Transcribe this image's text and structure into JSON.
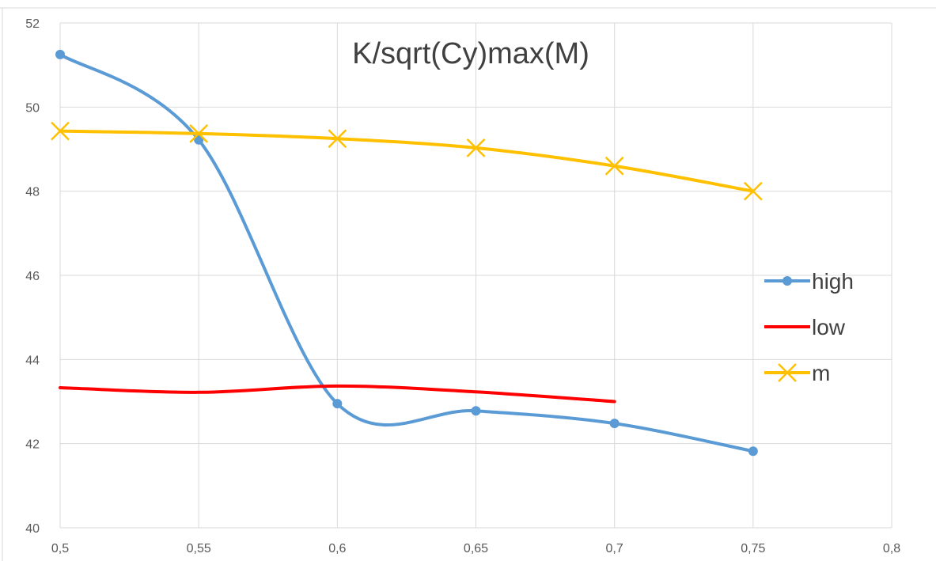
{
  "chart_data": {
    "type": "line",
    "title": "K/sqrt(Cy)max(M)",
    "xlabel": "",
    "ylabel": "",
    "xlim": [
      0.5,
      0.8
    ],
    "ylim": [
      40,
      52
    ],
    "x_ticks": [
      "0,5",
      "0,55",
      "0,6",
      "0,65",
      "0,7",
      "0,75",
      "0,8"
    ],
    "y_ticks": [
      "40",
      "42",
      "44",
      "46",
      "48",
      "50",
      "52"
    ],
    "grid": true,
    "smooth": true,
    "legend_position": "right",
    "series": [
      {
        "name": "high",
        "color": "#5b9bd5",
        "marker": "circle",
        "x": [
          0.5,
          0.55,
          0.6,
          0.65,
          0.7,
          0.75
        ],
        "y": [
          51.25,
          49.22,
          42.95,
          42.78,
          42.48,
          41.82
        ]
      },
      {
        "name": "low",
        "color": "#ff0000",
        "marker": "none",
        "x": [
          0.5,
          0.55,
          0.6,
          0.65,
          0.7
        ],
        "y": [
          43.33,
          43.22,
          43.37,
          43.23,
          43.0
        ]
      },
      {
        "name": "m",
        "color": "#ffc000",
        "marker": "x",
        "x": [
          0.5,
          0.55,
          0.6,
          0.65,
          0.7,
          0.75
        ],
        "y": [
          49.43,
          49.37,
          49.25,
          49.03,
          48.6,
          48.0
        ]
      }
    ]
  }
}
